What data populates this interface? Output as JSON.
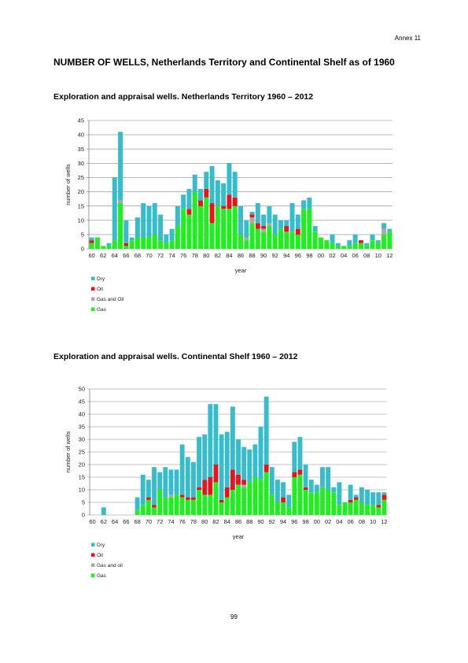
{
  "header": {
    "annex": "Annex 11"
  },
  "title": "NUMBER OF WELLS, Netherlands Territory and Continental Shelf as of 1960",
  "page_number": "99",
  "colors": {
    "Dry": "#35bdcc",
    "Oil": "#e8141c",
    "Gas and Oil": "#b2a4ac",
    "Gas": "#1ef01e"
  },
  "chart_data": [
    {
      "type": "bar",
      "stacked": true,
      "title": "Exploration and appraisal wells. Netherlands Territory 1960 – 2012",
      "xlabel": "year",
      "ylabel": "number of wells",
      "ylim": [
        0,
        45
      ],
      "yticks": [
        0,
        5,
        10,
        15,
        20,
        25,
        30,
        35,
        40,
        45
      ],
      "grid": true,
      "legend_position": "bottom-left",
      "categories": [
        "60",
        "61",
        "62",
        "63",
        "64",
        "65",
        "66",
        "67",
        "68",
        "69",
        "70",
        "71",
        "72",
        "73",
        "74",
        "75",
        "76",
        "77",
        "78",
        "79",
        "80",
        "81",
        "82",
        "83",
        "84",
        "85",
        "86",
        "87",
        "88",
        "89",
        "90",
        "91",
        "92",
        "93",
        "94",
        "95",
        "96",
        "97",
        "98",
        "99",
        "00",
        "01",
        "02",
        "03",
        "04",
        "05",
        "06",
        "07",
        "08",
        "09",
        "10",
        "11",
        "12"
      ],
      "tick_labels": [
        "60",
        "62",
        "64",
        "66",
        "68",
        "70",
        "72",
        "74",
        "76",
        "78",
        "80",
        "82",
        "84",
        "86",
        "88",
        "90",
        "92",
        "94",
        "96",
        "98",
        "00",
        "02",
        "04",
        "06",
        "08",
        "10",
        "12"
      ],
      "series": [
        {
          "name": "Gas",
          "values": [
            2,
            4,
            1,
            1,
            3,
            16,
            1,
            3,
            4,
            4,
            4,
            5,
            3,
            2,
            3,
            8,
            14,
            12,
            20,
            15,
            18,
            9,
            15,
            14,
            14,
            15,
            5,
            3,
            9,
            7,
            6,
            8,
            5,
            7,
            6,
            6,
            5,
            14,
            14,
            6,
            4,
            3,
            2,
            1,
            1,
            1,
            2,
            2,
            1,
            3,
            2,
            5,
            6
          ]
        },
        {
          "name": "Gas and Oil",
          "values": [
            0,
            0,
            0,
            0,
            0,
            1,
            0,
            0,
            0,
            0,
            0,
            0,
            0,
            0,
            0,
            0,
            0,
            0,
            0,
            0,
            0,
            0,
            0,
            0,
            0,
            0,
            0,
            1,
            2,
            0,
            1,
            1,
            0,
            0,
            0,
            0,
            0,
            0,
            0,
            0,
            0,
            0,
            0,
            0,
            0,
            0,
            0,
            0,
            0,
            0,
            0,
            2,
            0
          ]
        },
        {
          "name": "Oil",
          "values": [
            1,
            0,
            0,
            0,
            0,
            0,
            1,
            0,
            0,
            0,
            0,
            0,
            0,
            0,
            0,
            0,
            0,
            2,
            0,
            2,
            3,
            7,
            0,
            1,
            5,
            3,
            0,
            0,
            1,
            2,
            1,
            0,
            0,
            0,
            2,
            0,
            2,
            0,
            0,
            0,
            0,
            0,
            0,
            0,
            0,
            0,
            0,
            1,
            0,
            0,
            0,
            0,
            0
          ]
        },
        {
          "name": "Dry",
          "values": [
            1,
            0,
            0,
            1,
            22,
            24,
            8,
            1,
            7,
            12,
            11,
            11,
            9,
            3,
            4,
            7,
            5,
            7,
            6,
            4,
            6,
            13,
            9,
            8,
            11,
            9,
            10,
            6,
            1,
            7,
            4,
            6,
            7,
            3,
            2,
            10,
            5,
            3,
            4,
            2,
            0,
            0,
            3,
            1,
            0,
            2,
            3,
            0,
            1,
            2,
            1,
            2,
            1
          ]
        }
      ],
      "legend": [
        "Dry",
        "Oil",
        "Gas and Oil",
        "Gas"
      ]
    },
    {
      "type": "bar",
      "stacked": true,
      "title": "Exploration and appraisal wells. Continental Shelf 1960 – 2012",
      "xlabel": "year",
      "ylabel": "number of wells",
      "ylim": [
        0,
        50
      ],
      "yticks": [
        0,
        5,
        10,
        15,
        20,
        25,
        30,
        35,
        40,
        45,
        50
      ],
      "grid": true,
      "legend_position": "bottom-left",
      "categories": [
        "60",
        "61",
        "62",
        "63",
        "64",
        "65",
        "66",
        "67",
        "68",
        "69",
        "70",
        "71",
        "72",
        "73",
        "74",
        "75",
        "76",
        "77",
        "78",
        "79",
        "80",
        "81",
        "82",
        "83",
        "84",
        "85",
        "86",
        "87",
        "88",
        "89",
        "90",
        "91",
        "92",
        "93",
        "94",
        "95",
        "96",
        "97",
        "98",
        "99",
        "00",
        "01",
        "02",
        "03",
        "04",
        "05",
        "06",
        "07",
        "08",
        "09",
        "10",
        "11",
        "12"
      ],
      "tick_labels": [
        "60",
        "62",
        "64",
        "66",
        "68",
        "70",
        "72",
        "74",
        "76",
        "78",
        "80",
        "82",
        "84",
        "86",
        "88",
        "90",
        "92",
        "94",
        "96",
        "98",
        "00",
        "02",
        "04",
        "06",
        "08",
        "10",
        "12"
      ],
      "series": [
        {
          "name": "Gas",
          "values": [
            0,
            0,
            0,
            0,
            0,
            0,
            0,
            0,
            2,
            4,
            6,
            3,
            10,
            7,
            7,
            8,
            7,
            6,
            6,
            10,
            8,
            8,
            13,
            5,
            7,
            10,
            12,
            11,
            13,
            15,
            14,
            17,
            8,
            5,
            5,
            3,
            15,
            16,
            10,
            9,
            9,
            11,
            10,
            9,
            4,
            5,
            5,
            6,
            5,
            4,
            4,
            3,
            6
          ]
        },
        {
          "name": "Gas and oil",
          "values": [
            0,
            0,
            0,
            0,
            0,
            0,
            0,
            0,
            0,
            0,
            0,
            0,
            0,
            0,
            1,
            0,
            0,
            0,
            0,
            0,
            0,
            0,
            0,
            0,
            0,
            0,
            0,
            1,
            0,
            0,
            0,
            0,
            0,
            0,
            0,
            0,
            0,
            0,
            0,
            0,
            0,
            0,
            0,
            0,
            0,
            0,
            0,
            0,
            0,
            0,
            0,
            0,
            0
          ]
        },
        {
          "name": "Oil",
          "values": [
            0,
            0,
            0,
            0,
            0,
            0,
            0,
            0,
            0,
            0,
            1,
            1,
            0,
            0,
            0,
            0,
            1,
            1,
            1,
            1,
            6,
            7,
            7,
            1,
            4,
            8,
            4,
            2,
            0,
            0,
            0,
            3,
            0,
            0,
            2,
            0,
            2,
            2,
            1,
            0,
            0,
            0,
            0,
            0,
            0,
            0,
            1,
            1,
            0,
            0,
            0,
            1,
            2
          ]
        },
        {
          "name": "Dry",
          "values": [
            0,
            0,
            3,
            0,
            0,
            0,
            0,
            0,
            5,
            12,
            7,
            15,
            7,
            12,
            10,
            10,
            20,
            16,
            14,
            20,
            18,
            29,
            24,
            26,
            22,
            25,
            14,
            13,
            13,
            13,
            21,
            27,
            11,
            9,
            6,
            5,
            12,
            13,
            9,
            5,
            3,
            8,
            9,
            2,
            9,
            0,
            6,
            1,
            6,
            6,
            5,
            5,
            1
          ]
        }
      ],
      "legend": [
        "Dry",
        "Oil",
        "Gas and oil",
        "Gas"
      ]
    }
  ]
}
